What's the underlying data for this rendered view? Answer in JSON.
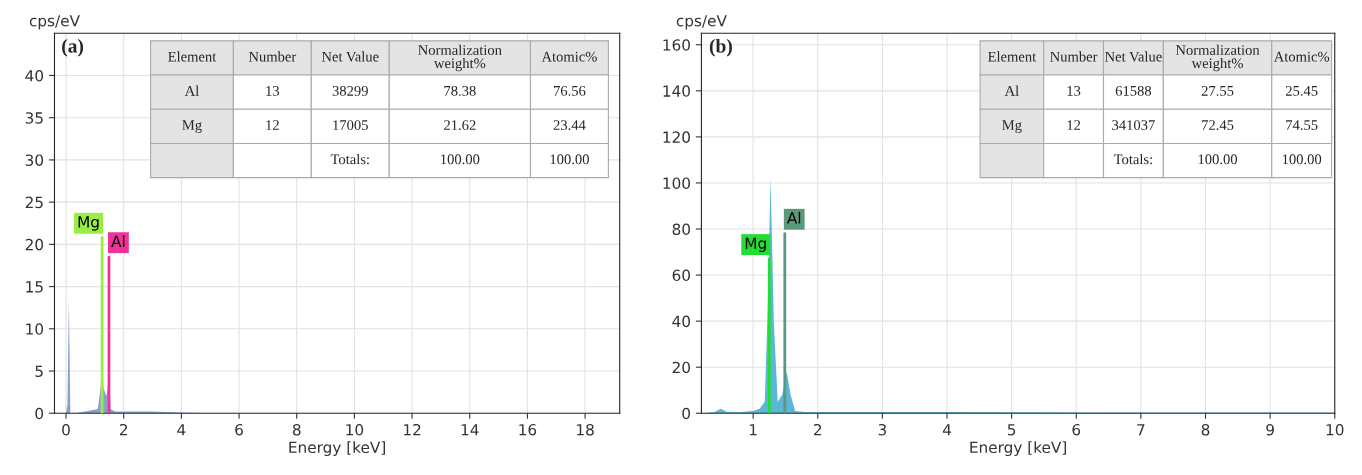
{
  "chart_data": [
    {
      "type": "area",
      "title": "(a)",
      "xlabel": "Energy [keV]",
      "ylabel": "cps/eV",
      "xlim": [
        -0.4,
        19.2
      ],
      "xticks": [
        0,
        2,
        4,
        6,
        8,
        10,
        12,
        14,
        16,
        18
      ],
      "ylim": [
        0,
        45
      ],
      "yticks": [
        0,
        5,
        10,
        15,
        20,
        25,
        30,
        35,
        40
      ],
      "grid": true,
      "series": [
        {
          "color": "#7b96cc",
          "x": [
            -0.2,
            0.0,
            0.05,
            0.1,
            0.15,
            0.3,
            0.8,
            1.1,
            1.2,
            1.25,
            1.3,
            1.4,
            1.49,
            1.55,
            1.7,
            2.0,
            3.0,
            4.0,
            5.0,
            19.0
          ],
          "values": [
            0,
            0,
            1,
            13.5,
            0,
            0,
            0.3,
            0.5,
            3,
            6,
            3,
            2,
            4,
            0.5,
            0.2,
            0.2,
            0.2,
            0.1,
            0,
            0
          ]
        },
        {
          "type": "line",
          "name": "Mg",
          "color": "#99ee44",
          "x": [
            1.25,
            1.25
          ],
          "values": [
            0,
            20.8
          ]
        },
        {
          "type": "line",
          "name": "Al",
          "color": "#ee3399",
          "x": [
            1.49,
            1.49
          ],
          "values": [
            0,
            18.5
          ]
        }
      ],
      "annotations": [
        "Element",
        "Number",
        "Net Value",
        "Normalization\nweight%",
        "Atomic%",
        "Al",
        "13",
        "38299",
        "78.38",
        "76.56",
        "Mg",
        "12",
        "17005",
        "21.62",
        "23.44",
        "Totals:",
        "100.00",
        "100.00"
      ]
    },
    {
      "type": "area",
      "title": "(b)",
      "xlabel": "Energy [keV]",
      "ylabel": "cps/eV",
      "xlim": [
        0.2,
        10
      ],
      "xticks": [
        1,
        2,
        3,
        4,
        5,
        6,
        7,
        8,
        9,
        10
      ],
      "ylim": [
        0,
        165
      ],
      "yticks": [
        0,
        20,
        40,
        60,
        80,
        100,
        120,
        140,
        160
      ],
      "grid": true,
      "series": [
        {
          "color": "#4aaed0",
          "x": [
            0.2,
            0.4,
            0.5,
            0.6,
            0.8,
            1.0,
            1.1,
            1.18,
            1.22,
            1.27,
            1.32,
            1.38,
            1.45,
            1.52,
            1.58,
            1.65,
            1.8,
            2.0,
            4.0,
            7.0,
            10.0
          ],
          "values": [
            0,
            0.5,
            2,
            0.5,
            0.5,
            1,
            2,
            5,
            40,
            102,
            40,
            5,
            8,
            18,
            8,
            1,
            0.5,
            0.5,
            0.5,
            0.3,
            0.3
          ]
        },
        {
          "type": "line",
          "name": "Mg",
          "color": "#22dd33",
          "x": [
            1.25,
            1.25
          ],
          "values": [
            0,
            67
          ]
        },
        {
          "type": "line",
          "name": "Al",
          "color": "#5a9a7a",
          "x": [
            1.49,
            1.49
          ],
          "values": [
            0,
            78
          ]
        }
      ],
      "annotations": [
        "Element",
        "Number",
        "Net Value",
        "Normalization\nweight%",
        "Atomic%",
        "Al",
        "13",
        "61588",
        "27.55",
        "25.45",
        "Mg",
        "12",
        "341037",
        "72.45",
        "74.55",
        "Totals:",
        "100.00",
        "100.00"
      ]
    }
  ]
}
